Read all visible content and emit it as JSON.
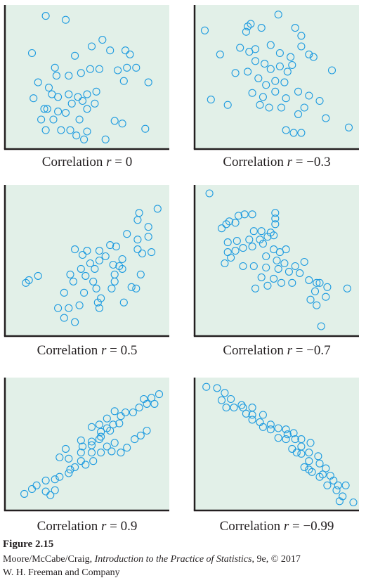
{
  "chart_data": [
    {
      "type": "scatter",
      "caption": {
        "prefix": "Correlation ",
        "var": "r",
        "rest": " = 0"
      },
      "points": [
        [
          2.3,
          9.6
        ],
        [
          3.6,
          9.3
        ],
        [
          1.4,
          6.8
        ],
        [
          4.2,
          6.6
        ],
        [
          6.0,
          7.8
        ],
        [
          5.3,
          7.3
        ],
        [
          7.5,
          7.0
        ],
        [
          7.8,
          6.7
        ],
        [
          1.8,
          4.6
        ],
        [
          1.5,
          3.4
        ],
        [
          2.9,
          5.7
        ],
        [
          3.0,
          5.1
        ],
        [
          3.8,
          5.1
        ],
        [
          4.6,
          5.3
        ],
        [
          5.2,
          5.6
        ],
        [
          5.8,
          5.6
        ],
        [
          7.0,
          5.5
        ],
        [
          7.6,
          5.7
        ],
        [
          8.2,
          5.7
        ],
        [
          9.0,
          4.6
        ],
        [
          2.5,
          4.2
        ],
        [
          2.7,
          3.7
        ],
        [
          3.1,
          3.5
        ],
        [
          3.8,
          3.7
        ],
        [
          4.4,
          3.5
        ],
        [
          5.0,
          3.7
        ],
        [
          5.6,
          3.9
        ],
        [
          7.4,
          4.7
        ],
        [
          2.4,
          2.6
        ],
        [
          3.1,
          2.4
        ],
        [
          4.0,
          3.0
        ],
        [
          4.7,
          3.2
        ],
        [
          2.0,
          1.8
        ],
        [
          2.8,
          1.8
        ],
        [
          3.6,
          2.3
        ],
        [
          5.0,
          2.6
        ],
        [
          2.3,
          1.0
        ],
        [
          3.3,
          1.0
        ],
        [
          4.5,
          1.8
        ],
        [
          4.3,
          0.6
        ],
        [
          6.8,
          1.7
        ],
        [
          7.3,
          1.5
        ],
        [
          8.8,
          1.1
        ],
        [
          3.9,
          1.0
        ],
        [
          4.8,
          0.3
        ],
        [
          6.2,
          0.3
        ],
        [
          5.5,
          3.0
        ],
        [
          6.5,
          7.0
        ],
        [
          2.2,
          2.6
        ],
        [
          5.0,
          0.9
        ]
      ],
      "xlim": [
        0,
        10
      ],
      "ylim": [
        0,
        10
      ]
    },
    {
      "type": "scatter",
      "caption": {
        "prefix": "Correlation ",
        "var": "r",
        "rest": " = −0.3"
      },
      "points": [
        [
          0.3,
          8.5
        ],
        [
          3.0,
          8.4
        ],
        [
          3.1,
          8.8
        ],
        [
          3.3,
          9.0
        ],
        [
          4.0,
          8.7
        ],
        [
          5.1,
          9.7
        ],
        [
          6.2,
          8.7
        ],
        [
          6.6,
          8.1
        ],
        [
          1.3,
          6.7
        ],
        [
          2.6,
          7.2
        ],
        [
          3.2,
          6.9
        ],
        [
          3.6,
          7.1
        ],
        [
          4.6,
          7.4
        ],
        [
          5.2,
          6.8
        ],
        [
          5.9,
          6.5
        ],
        [
          6.6,
          7.3
        ],
        [
          7.1,
          6.7
        ],
        [
          7.4,
          6.5
        ],
        [
          2.3,
          5.3
        ],
        [
          3.1,
          5.4
        ],
        [
          3.6,
          6.2
        ],
        [
          4.2,
          6.0
        ],
        [
          4.6,
          5.6
        ],
        [
          5.2,
          5.8
        ],
        [
          5.7,
          5.4
        ],
        [
          6.0,
          5.9
        ],
        [
          8.6,
          5.5
        ],
        [
          3.8,
          4.9
        ],
        [
          4.3,
          4.4
        ],
        [
          4.9,
          4.7
        ],
        [
          5.5,
          4.6
        ],
        [
          3.4,
          3.8
        ],
        [
          4.1,
          3.5
        ],
        [
          4.9,
          3.9
        ],
        [
          5.6,
          3.4
        ],
        [
          6.4,
          3.9
        ],
        [
          7.1,
          3.6
        ],
        [
          7.8,
          3.2
        ],
        [
          0.7,
          3.3
        ],
        [
          1.8,
          2.9
        ],
        [
          3.9,
          2.9
        ],
        [
          4.5,
          2.7
        ],
        [
          5.3,
          2.7
        ],
        [
          6.4,
          2.2
        ],
        [
          8.2,
          1.9
        ],
        [
          9.7,
          1.2
        ],
        [
          5.6,
          1.0
        ],
        [
          6.1,
          0.8
        ],
        [
          6.6,
          0.8
        ],
        [
          6.8,
          2.7
        ]
      ],
      "xlim": [
        0,
        10
      ],
      "ylim": [
        0,
        10
      ]
    },
    {
      "type": "scatter",
      "caption": {
        "prefix": "Correlation ",
        "var": "r",
        "rest": " = 0.5"
      },
      "points": [
        [
          9.6,
          8.7
        ],
        [
          8.4,
          8.4
        ],
        [
          8.3,
          7.9
        ],
        [
          9.0,
          7.4
        ],
        [
          7.6,
          6.9
        ],
        [
          8.3,
          6.5
        ],
        [
          9.0,
          6.7
        ],
        [
          6.5,
          6.1
        ],
        [
          6.9,
          6.0
        ],
        [
          8.3,
          5.8
        ],
        [
          8.6,
          5.5
        ],
        [
          9.2,
          5.6
        ],
        [
          4.2,
          5.8
        ],
        [
          5.0,
          5.7
        ],
        [
          5.8,
          5.7
        ],
        [
          6.2,
          5.3
        ],
        [
          4.7,
          5.4
        ],
        [
          5.8,
          5.0
        ],
        [
          7.3,
          5.1
        ],
        [
          5.2,
          4.8
        ],
        [
          7.1,
          4.6
        ],
        [
          6.7,
          4.7
        ],
        [
          4.6,
          4.4
        ],
        [
          5.5,
          4.4
        ],
        [
          3.9,
          4.0
        ],
        [
          4.9,
          3.9
        ],
        [
          5.4,
          3.5
        ],
        [
          6.8,
          4.0
        ],
        [
          7.3,
          4.4
        ],
        [
          8.5,
          4.0
        ],
        [
          1.8,
          3.9
        ],
        [
          5.6,
          3.0
        ],
        [
          6.6,
          3.0
        ],
        [
          7.9,
          3.1
        ],
        [
          8.2,
          3.0
        ],
        [
          1.0,
          3.4
        ],
        [
          1.2,
          3.6
        ],
        [
          3.5,
          2.7
        ],
        [
          4.8,
          2.7
        ],
        [
          5.9,
          2.3
        ],
        [
          7.4,
          2.0
        ],
        [
          4.5,
          1.8
        ],
        [
          5.8,
          1.6
        ],
        [
          3.8,
          1.6
        ],
        [
          3.5,
          0.9
        ],
        [
          4.2,
          0.6
        ],
        [
          3.1,
          1.6
        ],
        [
          6.8,
          3.5
        ],
        [
          5.7,
          2.0
        ],
        [
          4.1,
          3.5
        ]
      ],
      "xlim": [
        0,
        10
      ],
      "ylim": [
        0,
        10
      ]
    },
    {
      "type": "scatter",
      "caption": {
        "prefix": "Correlation ",
        "var": "r",
        "rest": " = −0.7"
      },
      "points": [
        [
          0.6,
          9.8
        ],
        [
          2.5,
          8.2
        ],
        [
          2.9,
          8.3
        ],
        [
          3.4,
          8.3
        ],
        [
          1.9,
          7.8
        ],
        [
          2.3,
          7.7
        ],
        [
          1.4,
          7.3
        ],
        [
          1.7,
          7.6
        ],
        [
          4.9,
          8.4
        ],
        [
          4.9,
          8.0
        ],
        [
          4.9,
          7.6
        ],
        [
          3.5,
          7.1
        ],
        [
          4.0,
          7.1
        ],
        [
          4.6,
          7.0
        ],
        [
          1.8,
          6.3
        ],
        [
          2.4,
          6.4
        ],
        [
          3.2,
          6.5
        ],
        [
          3.9,
          6.5
        ],
        [
          4.4,
          6.7
        ],
        [
          4.8,
          6.8
        ],
        [
          1.8,
          5.6
        ],
        [
          2.3,
          5.7
        ],
        [
          2.8,
          5.9
        ],
        [
          3.4,
          6.0
        ],
        [
          4.1,
          6.2
        ],
        [
          4.8,
          5.8
        ],
        [
          5.2,
          5.6
        ],
        [
          5.6,
          5.8
        ],
        [
          1.6,
          4.8
        ],
        [
          2.0,
          5.2
        ],
        [
          4.3,
          5.3
        ],
        [
          5.0,
          5.0
        ],
        [
          5.5,
          4.8
        ],
        [
          6.2,
          4.6
        ],
        [
          6.8,
          4.9
        ],
        [
          3.5,
          4.6
        ],
        [
          4.3,
          4.5
        ],
        [
          5.1,
          4.4
        ],
        [
          5.8,
          4.2
        ],
        [
          6.5,
          4.1
        ],
        [
          2.8,
          4.6
        ],
        [
          4.0,
          3.8
        ],
        [
          4.8,
          3.7
        ],
        [
          6.0,
          3.4
        ],
        [
          7.1,
          3.6
        ],
        [
          7.8,
          3.4
        ],
        [
          8.3,
          3.1
        ],
        [
          9.6,
          3.0
        ],
        [
          3.6,
          3.0
        ],
        [
          4.4,
          3.2
        ],
        [
          5.3,
          3.4
        ],
        [
          7.6,
          3.4
        ],
        [
          7.5,
          2.8
        ],
        [
          7.2,
          2.2
        ],
        [
          7.6,
          1.8
        ],
        [
          8.2,
          2.4
        ],
        [
          7.9,
          0.3
        ]
      ],
      "xlim": [
        0,
        10
      ],
      "ylim": [
        0,
        10
      ]
    },
    {
      "type": "scatter",
      "caption": {
        "prefix": "Correlation ",
        "var": "r",
        "rest": " = 0.9"
      },
      "points": [
        [
          9.7,
          9.1
        ],
        [
          9.2,
          8.8
        ],
        [
          8.7,
          8.7
        ],
        [
          9.4,
          8.3
        ],
        [
          8.9,
          8.3
        ],
        [
          8.4,
          8.0
        ],
        [
          8.0,
          7.6
        ],
        [
          7.5,
          7.6
        ],
        [
          6.8,
          7.7
        ],
        [
          7.2,
          7.3
        ],
        [
          6.3,
          7.1
        ],
        [
          5.8,
          6.6
        ],
        [
          5.3,
          6.4
        ],
        [
          6.5,
          6.1
        ],
        [
          7.1,
          6.7
        ],
        [
          6.7,
          6.6
        ],
        [
          5.9,
          6.0
        ],
        [
          5.8,
          5.4
        ],
        [
          6.8,
          5.1
        ],
        [
          6.3,
          4.8
        ],
        [
          5.3,
          5.2
        ],
        [
          5.9,
          4.3
        ],
        [
          5.3,
          4.3
        ],
        [
          4.6,
          4.3
        ],
        [
          4.7,
          4.8
        ],
        [
          5.3,
          4.9
        ],
        [
          5.9,
          5.6
        ],
        [
          6.6,
          4.4
        ],
        [
          7.2,
          4.3
        ],
        [
          7.6,
          4.7
        ],
        [
          8.1,
          5.4
        ],
        [
          8.5,
          5.7
        ],
        [
          8.9,
          6.1
        ],
        [
          4.6,
          3.6
        ],
        [
          5.4,
          3.6
        ],
        [
          3.8,
          3.8
        ],
        [
          3.2,
          3.9
        ],
        [
          4.6,
          5.3
        ],
        [
          6.3,
          6.3
        ],
        [
          4.9,
          3.3
        ],
        [
          4.2,
          3.1
        ],
        [
          3.8,
          2.6
        ],
        [
          3.2,
          2.3
        ],
        [
          3.6,
          4.6
        ],
        [
          2.9,
          2.1
        ],
        [
          2.3,
          2.0
        ],
        [
          1.7,
          1.6
        ],
        [
          2.3,
          1.1
        ],
        [
          1.4,
          1.3
        ],
        [
          0.9,
          0.9
        ],
        [
          2.9,
          1.2
        ],
        [
          3.9,
          2.9
        ],
        [
          2.6,
          0.8
        ]
      ],
      "xlim": [
        0,
        10
      ],
      "ylim": [
        0,
        10
      ]
    },
    {
      "type": "scatter",
      "caption": {
        "prefix": "Correlation ",
        "var": "r",
        "rest": " = −0.99"
      },
      "points": [
        [
          0.4,
          9.7
        ],
        [
          1.1,
          9.6
        ],
        [
          1.6,
          9.2
        ],
        [
          1.4,
          8.6
        ],
        [
          2.0,
          8.7
        ],
        [
          2.7,
          8.2
        ],
        [
          1.7,
          8.0
        ],
        [
          2.2,
          8.0
        ],
        [
          2.8,
          8.0
        ],
        [
          3.4,
          8.0
        ],
        [
          3.0,
          7.5
        ],
        [
          3.4,
          7.4
        ],
        [
          4.1,
          7.4
        ],
        [
          3.4,
          7.0
        ],
        [
          3.9,
          6.8
        ],
        [
          4.1,
          6.4
        ],
        [
          4.6,
          6.6
        ],
        [
          5.1,
          6.3
        ],
        [
          5.6,
          6.2
        ],
        [
          6.1,
          5.9
        ],
        [
          6.2,
          5.4
        ],
        [
          5.6,
          5.4
        ],
        [
          5.1,
          5.5
        ],
        [
          6.6,
          5.4
        ],
        [
          7.2,
          5.1
        ],
        [
          6.6,
          4.8
        ],
        [
          6.3,
          4.3
        ],
        [
          6.6,
          4.2
        ],
        [
          7.1,
          4.3
        ],
        [
          7.7,
          4.0
        ],
        [
          7.8,
          3.4
        ],
        [
          7.1,
          3.6
        ],
        [
          6.8,
          3.1
        ],
        [
          7.3,
          2.7
        ],
        [
          8.2,
          3.0
        ],
        [
          8.5,
          2.4
        ],
        [
          7.8,
          2.3
        ],
        [
          8.3,
          1.6
        ],
        [
          9.0,
          1.6
        ],
        [
          9.5,
          1.6
        ],
        [
          8.9,
          1.2
        ],
        [
          9.3,
          0.7
        ],
        [
          10.0,
          0.2
        ],
        [
          9.1,
          0.3
        ],
        [
          4.6,
          6.2
        ],
        [
          5.7,
          5.8
        ],
        [
          6.0,
          4.6
        ],
        [
          7.1,
          2.9
        ],
        [
          8.0,
          2.5
        ],
        [
          8.7,
          2.0
        ]
      ],
      "xlim": [
        0,
        10
      ],
      "ylim": [
        0,
        10
      ]
    }
  ],
  "style": {
    "panel_bg": "#e2f0e8",
    "axis_color": "#231f20",
    "marker_color": "#1e9be0"
  },
  "figure": {
    "label": "Figure 2.15",
    "credit_authors": "Moore/McCabe/Craig, ",
    "credit_title": "Introduction to the Practice of Statistics",
    "credit_rest": ", 9e, © 2017",
    "credit_publisher": "W. H. Freeman and Company"
  }
}
